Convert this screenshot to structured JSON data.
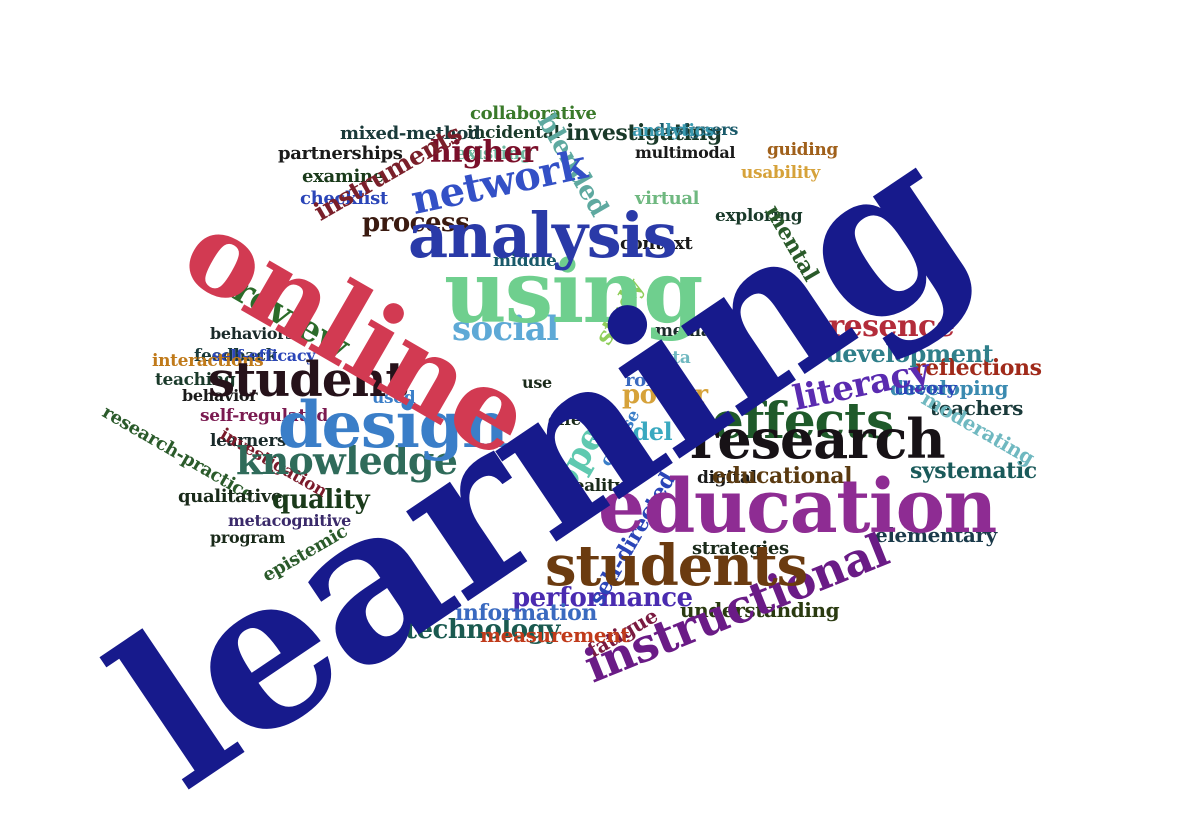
{
  "title": "",
  "colors": {
    "navy": "#171a8c",
    "crimson": "#d23a52",
    "steel": "#3a7ec8",
    "green": "#6fcf8e",
    "purple": "#8e2c93",
    "brown": "#6b3b10",
    "darkgreen": "#2f6b2a",
    "black": "#1c1216",
    "blue": "#2a45b8"
  },
  "words": [
    {
      "text": "learning",
      "color": "#171a8c"
    },
    {
      "text": "online",
      "color": "#d23a52"
    },
    {
      "text": "education",
      "color": "#8e2c93"
    },
    {
      "text": "analysis",
      "color": "#2a3aa8"
    },
    {
      "text": "using",
      "color": "#6fcf8e"
    },
    {
      "text": "design",
      "color": "#3a7ec8"
    },
    {
      "text": "research",
      "color": "#171216"
    },
    {
      "text": "students",
      "color": "#6b3b10"
    },
    {
      "text": "instructional",
      "color": "#6a1b86"
    },
    {
      "text": "student",
      "color": "#26121a"
    },
    {
      "text": "effects",
      "color": "#1f5a2a"
    },
    {
      "text": "knowledge",
      "color": "#2f6b5a"
    },
    {
      "text": "network",
      "color": "#3350c6"
    },
    {
      "text": "review",
      "color": "#2b6b2a"
    },
    {
      "text": "literacy",
      "color": "#5a2bb0"
    },
    {
      "text": "social",
      "color": "#5ea9d6"
    },
    {
      "text": "open",
      "color": "#5fc9b0"
    },
    {
      "text": "presence",
      "color": "#b32c3a"
    },
    {
      "text": "development",
      "color": "#2f7f8a"
    },
    {
      "text": "higher",
      "color": "#7a0f2a"
    },
    {
      "text": "blended",
      "color": "#5ea9a0"
    },
    {
      "text": "instruments",
      "color": "#7a1f2a"
    },
    {
      "text": "process",
      "color": "#3a1a10"
    },
    {
      "text": "study",
      "color": "#8fce5a"
    },
    {
      "text": "quality",
      "color": "#1a3a1a"
    },
    {
      "text": "performance",
      "color": "#4a2bb0"
    },
    {
      "text": "technology",
      "color": "#1a5a50"
    },
    {
      "text": "power",
      "color": "#d6a23a"
    },
    {
      "text": "model",
      "color": "#3aa9c0"
    },
    {
      "text": "educational",
      "color": "#5a3a10"
    },
    {
      "text": "mental",
      "color": "#2a5a2a"
    },
    {
      "text": "self-directed",
      "color": "#2a45b8"
    },
    {
      "text": "information",
      "color": "#3a6ac0"
    },
    {
      "text": "fatigue",
      "color": "#7a1a40"
    },
    {
      "text": "measurement",
      "color": "#c03a1a"
    },
    {
      "text": "understanding",
      "color": "#2a3a10"
    },
    {
      "text": "strategies",
      "color": "#1a2a1a"
    },
    {
      "text": "elementary",
      "color": "#1a3a4a"
    },
    {
      "text": "systematic",
      "color": "#1a5a5a"
    },
    {
      "text": "teachers",
      "color": "#1a3a3a"
    },
    {
      "text": "reflections",
      "color": "#a02a1a"
    },
    {
      "text": "developing",
      "color": "#3a8ab0"
    },
    {
      "text": "theory",
      "color": "#2a45b8"
    },
    {
      "text": "moderating",
      "color": "#6fb8c0"
    },
    {
      "text": "investigating",
      "color": "#5ab060"
    },
    {
      "text": "exploring",
      "color": "#1a3a2a"
    },
    {
      "text": "usability",
      "color": "#d6a23a"
    },
    {
      "text": "guiding",
      "color": "#a0601a"
    },
    {
      "text": "designers",
      "color": "#1a5a6a"
    },
    {
      "text": "analytics",
      "color": "#3a9ab0"
    },
    {
      "text": "collaborative",
      "color": "#3a7a2a"
    },
    {
      "text": "multimodal",
      "color": "#1a1a1a"
    },
    {
      "text": "incidental",
      "color": "#1a3a2a"
    },
    {
      "text": "mixed-method",
      "color": "#1a3a3a"
    },
    {
      "text": "partnerships",
      "color": "#1a1a1a"
    },
    {
      "text": "examine",
      "color": "#1a3a1a"
    },
    {
      "text": "existing",
      "color": "#6fb8a0"
    },
    {
      "text": "virtual",
      "color": "#6fb880"
    },
    {
      "text": "checklist",
      "color": "#2a45b8"
    },
    {
      "text": "context",
      "color": "#1a1a1a"
    },
    {
      "text": "middle",
      "color": "#1a5a6a"
    },
    {
      "text": "feedback",
      "color": "#1a3a3a"
    },
    {
      "text": "teaching",
      "color": "#1a3a2a"
    },
    {
      "text": "behaviors",
      "color": "#1a2a2a"
    },
    {
      "text": "self-efficacy",
      "color": "#2a45b8"
    },
    {
      "text": "interactions",
      "color": "#c07a1a"
    },
    {
      "text": "behavior",
      "color": "#1a1a1a"
    },
    {
      "text": "self-regulated",
      "color": "#7a1a50"
    },
    {
      "text": "research-practice",
      "color": "#2a5a2a"
    },
    {
      "text": "learners",
      "color": "#1a2a2a"
    },
    {
      "text": "investigation",
      "color": "#7a1a2a"
    },
    {
      "text": "qualitative",
      "color": "#1a2a1a"
    },
    {
      "text": "metacognitive",
      "color": "#3a2a6a"
    },
    {
      "text": "program",
      "color": "#1a2a1a"
    },
    {
      "text": "epistemic",
      "color": "#2a5a2a"
    },
    {
      "text": "data",
      "color": "#6fb8c0"
    },
    {
      "text": "media",
      "color": "#1a2a2a"
    },
    {
      "text": "role",
      "color": "#3a6ac0"
    },
    {
      "text": "use",
      "color": "#1a2a1a"
    },
    {
      "text": "used",
      "color": "#3a7ec8"
    },
    {
      "text": "effect",
      "color": "#1a2a1a"
    },
    {
      "text": "course",
      "color": "#3a7ec8"
    },
    {
      "text": "reality",
      "color": "#1a2a1a"
    },
    {
      "text": "digital",
      "color": "#1a1a1a"
    }
  ]
}
